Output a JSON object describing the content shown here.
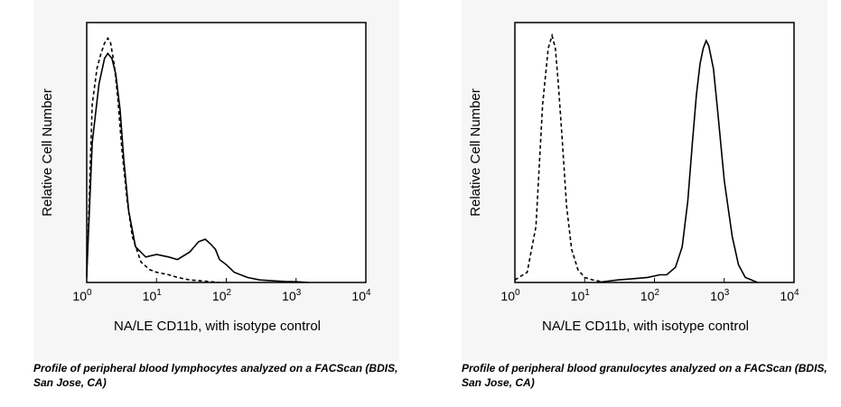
{
  "charts": [
    {
      "caption": "Profile of peripheral blood lymphocytes analyzed on a FACScan (BDIS, San Jose, CA)",
      "chart_data": {
        "type": "line",
        "xlabel": "NA/LE CD11b, with isotype control",
        "ylabel": "Relative Cell Number",
        "xscale": "log",
        "xlim": [
          1,
          10000
        ],
        "ylim": [
          0,
          100
        ],
        "xticks": [
          {
            "base": "10",
            "exp": "0"
          },
          {
            "base": "10",
            "exp": "1"
          },
          {
            "base": "10",
            "exp": "2"
          },
          {
            "base": "10",
            "exp": "3"
          },
          {
            "base": "10",
            "exp": "4"
          }
        ],
        "series": [
          {
            "style": "solid",
            "x": [
              1.0,
              1.2,
              1.5,
              1.8,
              2.0,
              2.3,
              2.6,
              3.0,
              3.4,
              4.0,
              5.0,
              7.0,
              10,
              15,
              20,
              30,
              40,
              50,
              60,
              70,
              80,
              100,
              130,
              200,
              300,
              500,
              700,
              1000,
              1500
            ],
            "y": [
              3,
              55,
              78,
              88,
              90,
              88,
              82,
              68,
              48,
              28,
              14,
              10,
              11,
              10,
              9,
              12,
              16,
              17,
              15,
              13,
              9,
              7,
              4,
              2,
              1,
              0.6,
              0.4,
              0.3,
              0
            ]
          },
          {
            "style": "dashed",
            "x": [
              1.0,
              1.2,
              1.4,
              1.6,
              1.8,
              2.0,
              2.2,
              2.5,
              2.8,
              3.2,
              3.8,
              4.5,
              6.0,
              8.0,
              10,
              15,
              20,
              30,
              50,
              80
            ],
            "y": [
              2,
              70,
              84,
              90,
              94,
              96,
              94,
              85,
              72,
              52,
              32,
              18,
              8,
              5,
              4,
              3,
              2,
              1,
              0.5,
              0
            ]
          }
        ]
      }
    },
    {
      "caption": "Profile of peripheral blood granulocytes analyzed on a FACScan (BDIS, San Jose, CA)",
      "chart_data": {
        "type": "line",
        "xlabel": "NA/LE CD11b, with isotype control",
        "ylabel": "Relative Cell Number",
        "xscale": "log",
        "xlim": [
          1,
          10000
        ],
        "ylim": [
          0,
          100
        ],
        "xticks": [
          {
            "base": "10",
            "exp": "0"
          },
          {
            "base": "10",
            "exp": "1"
          },
          {
            "base": "10",
            "exp": "2"
          },
          {
            "base": "10",
            "exp": "3"
          },
          {
            "base": "10",
            "exp": "4"
          }
        ],
        "series": [
          {
            "style": "dashed",
            "x": [
              1.0,
              1.5,
              2.0,
              2.5,
              3.0,
              3.4,
              3.8,
              4.2,
              4.8,
              5.5,
              6.5,
              8.0,
              10,
              13,
              20
            ],
            "y": [
              1,
              4,
              22,
              70,
              92,
              97,
              92,
              78,
              55,
              30,
              13,
              5,
              2,
              1,
              0
            ]
          },
          {
            "style": "solid",
            "x": [
              15,
              30,
              50,
              80,
              120,
              150,
              200,
              250,
              300,
              350,
              400,
              450,
              500,
              550,
              600,
              700,
              800,
              1000,
              1300,
              1600,
              2000,
              3000
            ],
            "y": [
              0,
              1,
              1.5,
              2,
              3,
              3,
              6,
              14,
              32,
              55,
              74,
              86,
              92,
              95,
              93,
              84,
              68,
              40,
              18,
              7,
              2,
              0
            ]
          }
        ]
      }
    }
  ]
}
